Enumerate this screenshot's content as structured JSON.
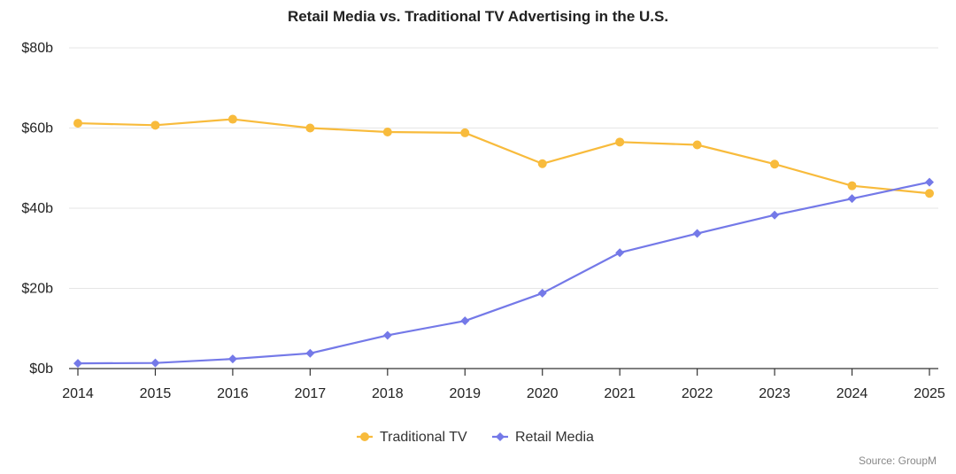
{
  "chart_data": {
    "type": "line",
    "title": "Retail Media vs. Traditional TV Advertising in the U.S.",
    "xlabel": "",
    "ylabel": "",
    "x": [
      "2014",
      "2015",
      "2016",
      "2017",
      "2018",
      "2019",
      "2020",
      "2021",
      "2022",
      "2023",
      "2024",
      "2025"
    ],
    "ylim": [
      0,
      80
    ],
    "yticks": [
      0,
      20,
      40,
      60,
      80
    ],
    "ytick_labels": [
      "$0b",
      "$20b",
      "$40b",
      "$60b",
      "$80b"
    ],
    "grid": "horizontal",
    "legend_position": "bottom-center",
    "series": [
      {
        "name": "Traditional TV",
        "color": "#F8BB3C",
        "marker": "circle",
        "values": [
          61.2,
          60.7,
          62.2,
          60.0,
          59.0,
          58.8,
          51.1,
          56.5,
          55.8,
          51.0,
          45.6,
          43.7
        ]
      },
      {
        "name": "Retail Media",
        "color": "#7479E8",
        "marker": "diamond",
        "values": [
          1.3,
          1.4,
          2.4,
          3.8,
          8.3,
          11.9,
          18.8,
          28.9,
          33.7,
          38.3,
          42.4,
          46.5
        ]
      }
    ],
    "source": "Source: GroupM"
  },
  "colors": {
    "grid": "#E6E6E6",
    "axis": "#333333",
    "text": "#222222",
    "source": "#888888"
  }
}
